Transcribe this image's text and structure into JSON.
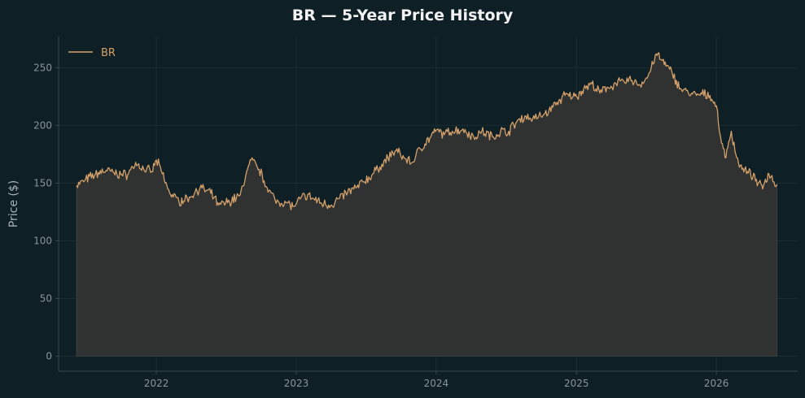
{
  "chart_data": {
    "type": "area",
    "title": "BR — 5-Year Price History",
    "xlabel": "",
    "ylabel": "Price ($)",
    "x_tick_labels": [
      "2022",
      "2023",
      "2024",
      "2025",
      "2026"
    ],
    "y_tick_labels": [
      "0",
      "50",
      "100",
      "150",
      "200",
      "250"
    ],
    "xlim": [
      "2021-04-21",
      "2026-08-01"
    ],
    "ylim": [
      -13,
      277
    ],
    "grid": true,
    "legend_position": "top-left",
    "colors": {
      "background": "#0f1f26",
      "line": "#d4a06a",
      "fill": "#2f3231",
      "text": "#8a9499",
      "title": "#f2f2f2",
      "axis": "#3b4a50"
    },
    "series": [
      {
        "name": "BR",
        "points": [
          [
            "2021-06-07",
            148
          ],
          [
            "2021-06-28",
            152
          ],
          [
            "2021-07-26",
            158
          ],
          [
            "2021-08-23",
            161
          ],
          [
            "2021-09-20",
            158
          ],
          [
            "2021-10-18",
            157
          ],
          [
            "2021-11-08",
            168
          ],
          [
            "2021-11-29",
            162
          ],
          [
            "2021-12-20",
            160
          ],
          [
            "2022-01-01",
            170
          ],
          [
            "2022-01-17",
            158
          ],
          [
            "2022-01-31",
            145
          ],
          [
            "2022-02-14",
            138
          ],
          [
            "2022-03-01",
            134
          ],
          [
            "2022-03-28",
            138
          ],
          [
            "2022-04-25",
            146
          ],
          [
            "2022-05-23",
            141
          ],
          [
            "2022-06-13",
            131
          ],
          [
            "2022-07-11",
            134
          ],
          [
            "2022-08-08",
            140
          ],
          [
            "2022-08-22",
            156
          ],
          [
            "2022-09-05",
            170
          ],
          [
            "2022-09-26",
            162
          ],
          [
            "2022-10-17",
            146
          ],
          [
            "2022-11-07",
            135
          ],
          [
            "2022-12-05",
            133
          ],
          [
            "2022-12-26",
            130
          ],
          [
            "2023-01-01",
            132
          ],
          [
            "2023-01-23",
            140
          ],
          [
            "2023-02-13",
            137
          ],
          [
            "2023-03-06",
            133
          ],
          [
            "2023-04-03",
            131
          ],
          [
            "2023-04-24",
            137
          ],
          [
            "2023-05-15",
            142
          ],
          [
            "2023-06-05",
            146
          ],
          [
            "2023-06-26",
            151
          ],
          [
            "2023-07-17",
            157
          ],
          [
            "2023-08-07",
            164
          ],
          [
            "2023-08-28",
            172
          ],
          [
            "2023-09-18",
            178
          ],
          [
            "2023-10-09",
            172
          ],
          [
            "2023-10-30",
            168
          ],
          [
            "2023-11-20",
            180
          ],
          [
            "2023-12-18",
            190
          ],
          [
            "2024-01-01",
            196
          ],
          [
            "2024-01-22",
            192
          ],
          [
            "2024-02-12",
            195
          ],
          [
            "2024-03-11",
            197
          ],
          [
            "2024-04-08",
            190
          ],
          [
            "2024-04-29",
            195
          ],
          [
            "2024-05-27",
            190
          ],
          [
            "2024-06-17",
            195
          ],
          [
            "2024-07-08",
            195
          ],
          [
            "2024-07-29",
            203
          ],
          [
            "2024-08-19",
            208
          ],
          [
            "2024-09-09",
            206
          ],
          [
            "2024-09-30",
            208
          ],
          [
            "2024-10-21",
            213
          ],
          [
            "2024-11-11",
            220
          ],
          [
            "2024-12-02",
            226
          ],
          [
            "2024-12-23",
            225
          ],
          [
            "2025-01-01",
            225
          ],
          [
            "2025-01-20",
            232
          ],
          [
            "2025-02-10",
            236
          ],
          [
            "2025-03-03",
            228
          ],
          [
            "2025-03-24",
            233
          ],
          [
            "2025-04-14",
            236
          ],
          [
            "2025-05-05",
            238
          ],
          [
            "2025-05-26",
            239
          ],
          [
            "2025-06-16",
            235
          ],
          [
            "2025-07-07",
            243
          ],
          [
            "2025-07-28",
            262
          ],
          [
            "2025-08-11",
            257
          ],
          [
            "2025-08-25",
            252
          ],
          [
            "2025-09-08",
            245
          ],
          [
            "2025-09-29",
            232
          ],
          [
            "2025-10-20",
            228
          ],
          [
            "2025-11-10",
            226
          ],
          [
            "2025-11-24",
            227
          ],
          [
            "2025-12-15",
            226
          ],
          [
            "2026-01-01",
            217
          ],
          [
            "2026-01-12",
            190
          ],
          [
            "2026-01-26",
            172
          ],
          [
            "2026-02-09",
            195
          ],
          [
            "2026-02-23",
            172
          ],
          [
            "2026-03-09",
            162
          ],
          [
            "2026-03-23",
            160
          ],
          [
            "2026-04-06",
            155
          ],
          [
            "2026-04-20",
            150
          ],
          [
            "2026-05-04",
            148
          ],
          [
            "2026-05-18",
            158
          ],
          [
            "2026-06-08",
            149
          ]
        ]
      }
    ]
  }
}
